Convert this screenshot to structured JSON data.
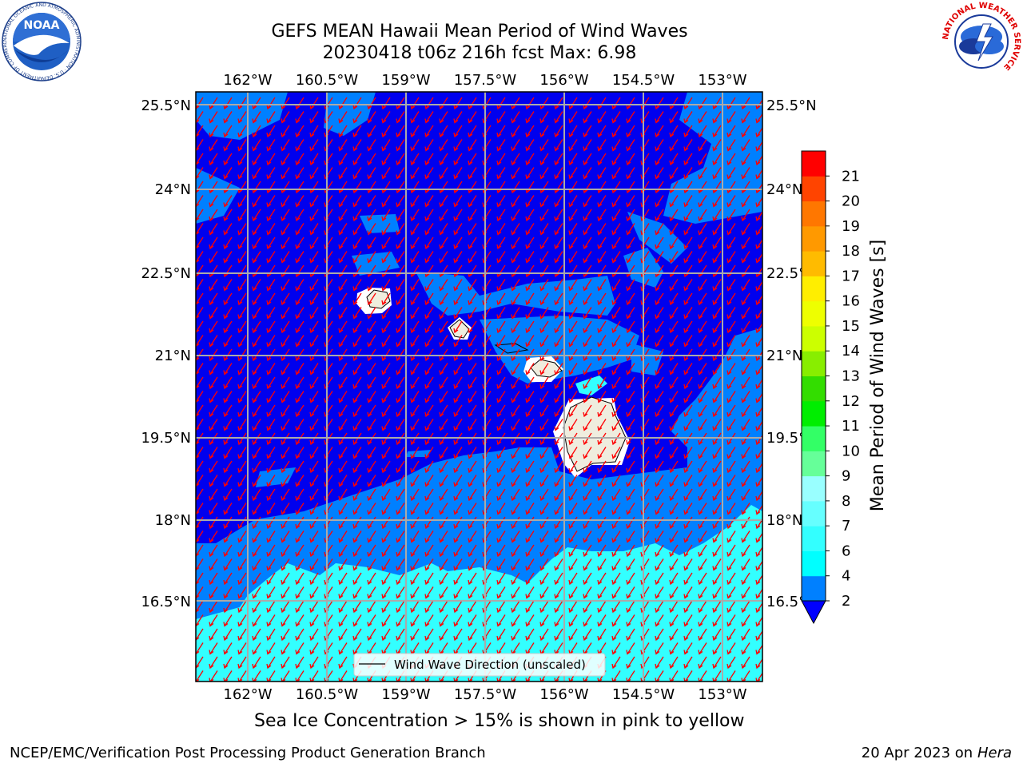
{
  "title": {
    "line1": "GEFS MEAN Hawaii Mean Period of Wind Waves",
    "line2": "20230418 t06z 216h fcst   Max: 6.98"
  },
  "map": {
    "lon_labels": [
      "162°W",
      "160.5°W",
      "159°W",
      "157.5°W",
      "156°W",
      "154.5°W",
      "153°W"
    ],
    "lat_labels": [
      "25.5°N",
      "24°N",
      "22.5°N",
      "21°N",
      "19.5°N",
      "18°N",
      "16.5°N"
    ],
    "legend_label": "Wind Wave Direction (unscaled)",
    "arrow_color": "#ff0000",
    "land_color": "#efedde",
    "grid_color": "#aaaaaa"
  },
  "colorbar": {
    "label": "Mean Period of Wind Waves [s]",
    "ticks": [
      "2",
      "4",
      "6",
      "7",
      "8",
      "9",
      "10",
      "11",
      "12",
      "13",
      "14",
      "15",
      "16",
      "17",
      "18",
      "19",
      "20",
      "21"
    ],
    "colors": [
      "#0080ff",
      "#00ffff",
      "#33ffff",
      "#66ffff",
      "#99ffff",
      "#66ff99",
      "#33ff66",
      "#00ee00",
      "#33dd00",
      "#88ee00",
      "#ccff00",
      "#eeff00",
      "#ffee00",
      "#ffbb00",
      "#ff9900",
      "#ff7700",
      "#ff4400",
      "#ff0000"
    ],
    "under_color": "#0000ff"
  },
  "logos": {
    "noaa": "NOAA",
    "noaa_ring": "NATIONAL OCEANIC AND ATMOSPHERIC ADMINISTRATION · U.S. DEPARTMENT OF COMMERCE",
    "nws_ring": "NATIONAL WEATHER SERVICE"
  },
  "footer": {
    "subtitle": "Sea Ice Concentration > 15% is shown in pink to yellow",
    "credit": "NCEP/EMC/Verification Post Processing Product Generation Branch",
    "date": "20 Apr 2023 on",
    "host": "Hera"
  }
}
